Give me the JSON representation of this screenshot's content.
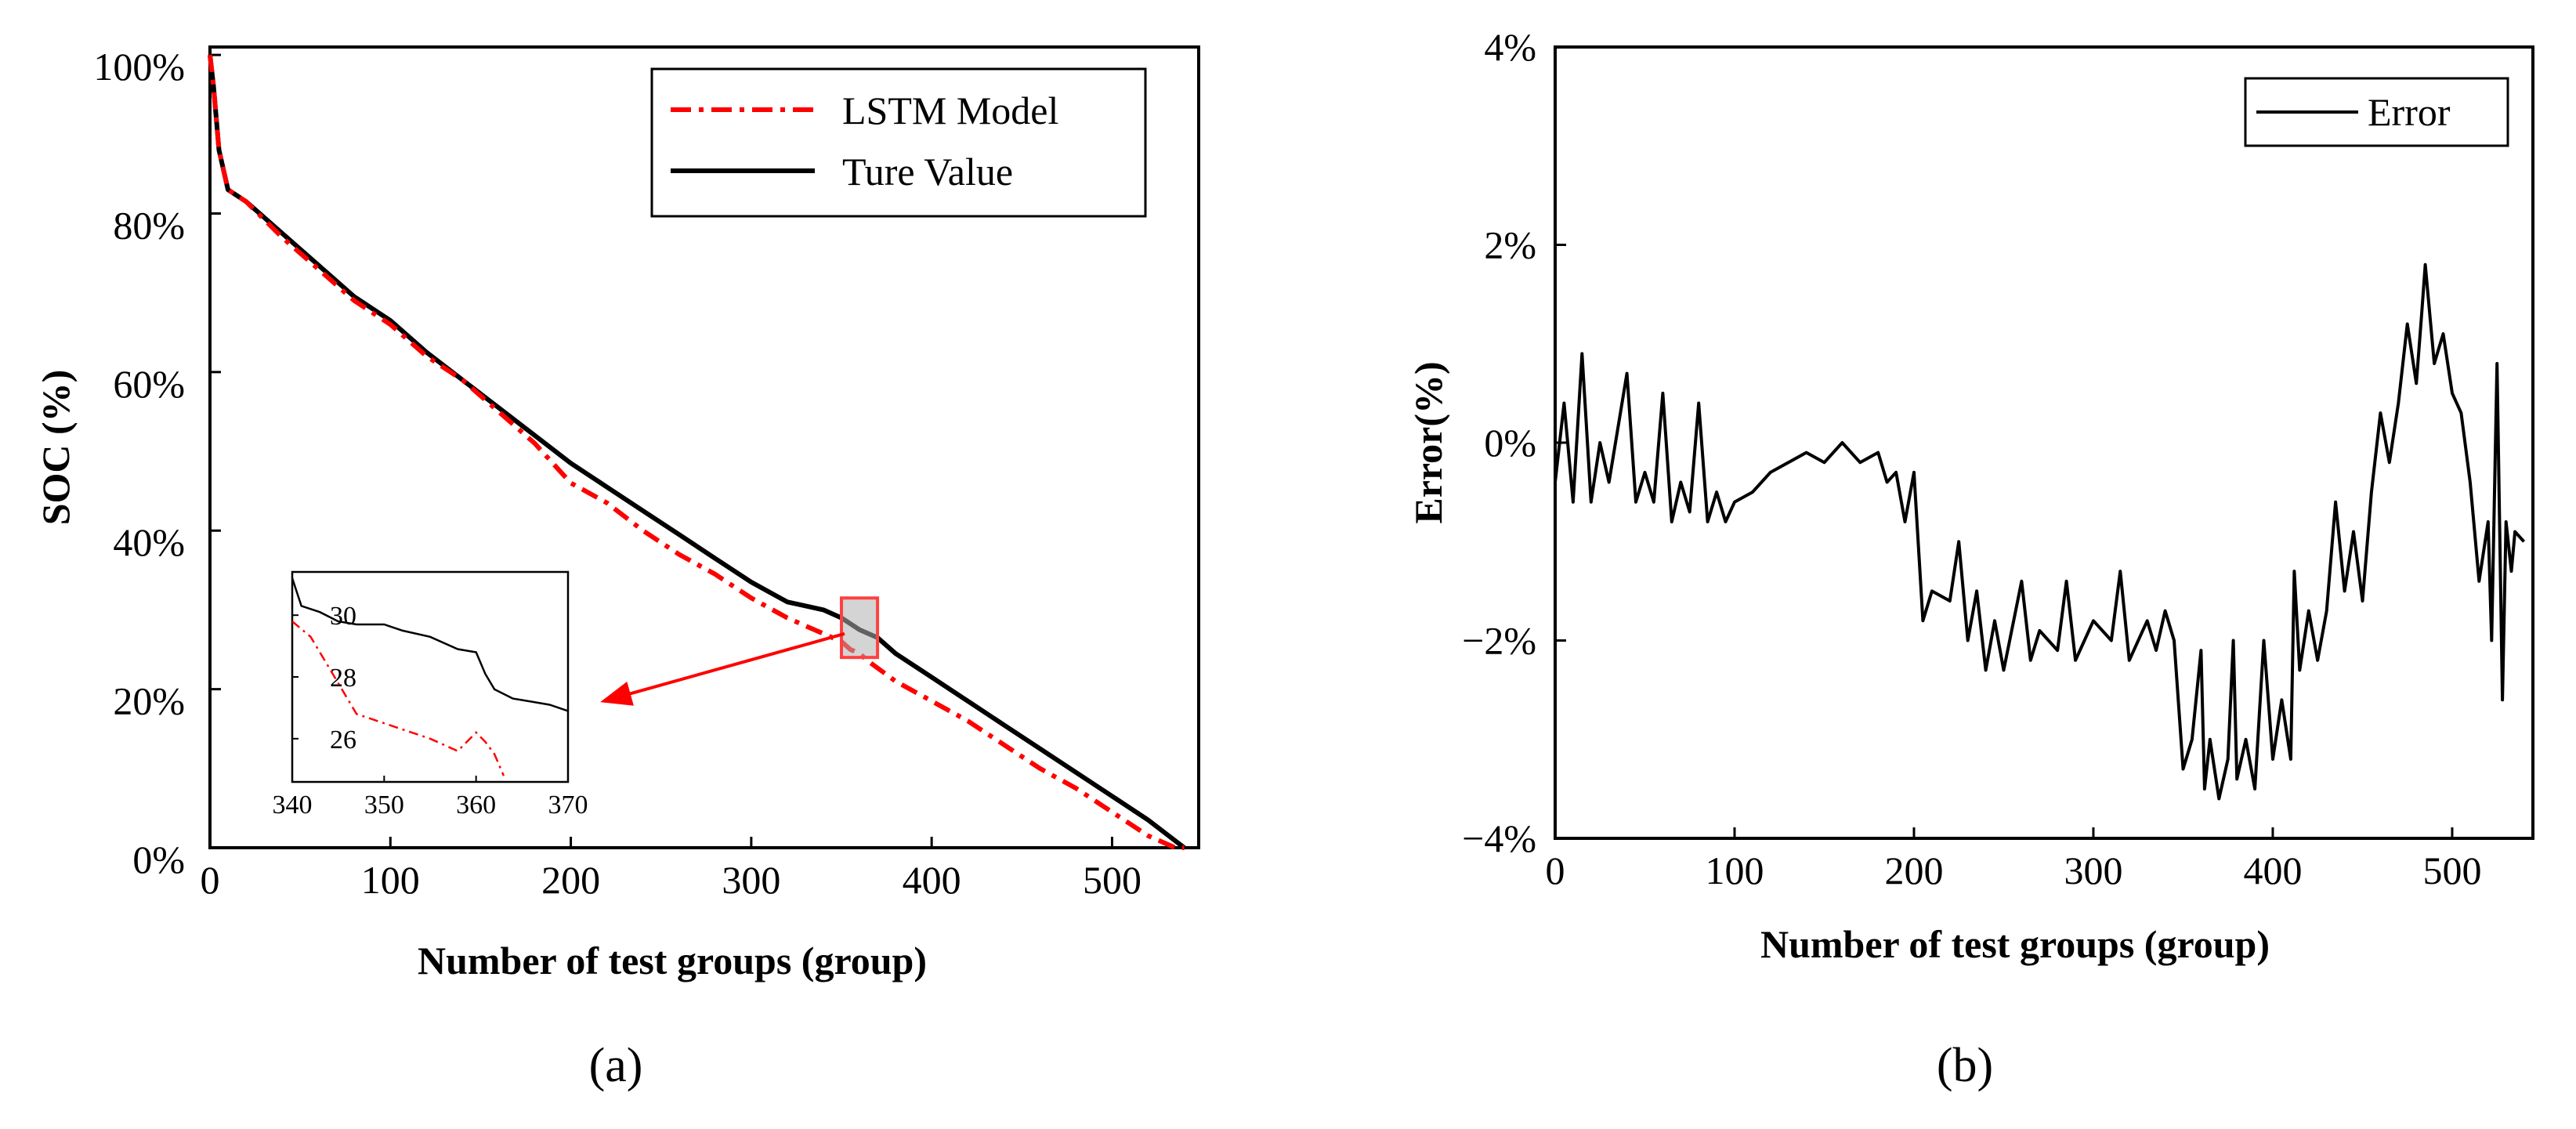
{
  "chart_data": [
    {
      "id": "a",
      "type": "line",
      "caption": "(a)",
      "xlabel": "Number of test groups (group)",
      "ylabel": "SOC (%)",
      "xlim": [
        0,
        548
      ],
      "ylim": [
        0,
        101
      ],
      "x_ticks": [
        0,
        100,
        200,
        300,
        400,
        500
      ],
      "y_ticks": [
        0,
        20,
        40,
        60,
        80,
        100
      ],
      "y_tick_labels": [
        "0%",
        "20%",
        "40%",
        "60%",
        "80%",
        "100%"
      ],
      "legend_position": "top-right",
      "series": [
        {
          "name": "LSTM Model",
          "color": "#ff0000",
          "style": "dash-dot",
          "x": [
            0,
            2,
            5,
            10,
            20,
            40,
            60,
            80,
            100,
            120,
            140,
            160,
            180,
            200,
            220,
            240,
            260,
            280,
            300,
            320,
            340,
            350,
            355,
            360,
            365,
            380,
            400,
            420,
            440,
            460,
            480,
            500,
            520,
            535,
            540
          ],
          "y": [
            100,
            96,
            88,
            83,
            81.5,
            77,
            73,
            69,
            66,
            62,
            59,
            55,
            51,
            46,
            43.5,
            40,
            37,
            34.5,
            31.5,
            29,
            27,
            26,
            25,
            24.5,
            23.5,
            21,
            18.5,
            16,
            13,
            10,
            7.5,
            4.5,
            1.5,
            0,
            0
          ]
        },
        {
          "name": "Ture Value",
          "color": "#000000",
          "style": "solid",
          "x": [
            0,
            2,
            5,
            10,
            20,
            40,
            60,
            80,
            100,
            120,
            140,
            160,
            180,
            200,
            220,
            240,
            260,
            280,
            300,
            320,
            340,
            350,
            360,
            370,
            380,
            400,
            420,
            440,
            460,
            480,
            500,
            520,
            540
          ],
          "y": [
            100,
            96,
            88,
            83,
            81.5,
            77.5,
            73.5,
            69.5,
            66.5,
            62.5,
            59,
            55.5,
            52,
            48.5,
            45.5,
            42.5,
            39.5,
            36.5,
            33.5,
            31,
            30,
            29,
            27.5,
            26.5,
            24.5,
            21.5,
            18.5,
            15.5,
            12.5,
            9.5,
            6.5,
            3.5,
            0
          ]
        }
      ],
      "inset": {
        "xlim": [
          340,
          370
        ],
        "ylim": [
          24.6,
          31.4
        ],
        "x_ticks": [
          340,
          350,
          360,
          370
        ],
        "y_ticks": [
          26,
          28,
          30
        ],
        "series": [
          {
            "name": "LSTM Model",
            "x": [
              340,
              342,
              345,
              347,
              350,
              355,
              358,
              360,
              361,
              362,
              363
            ],
            "y": [
              29.8,
              29.3,
              27.8,
              26.8,
              26.5,
              26.0,
              25.6,
              26.2,
              25.9,
              25.5,
              24.8
            ]
          },
          {
            "name": "Ture Value",
            "x": [
              340,
              341,
              343,
              345,
              347,
              350,
              352,
              355,
              358,
              360,
              361,
              362,
              364,
              366,
              368,
              370
            ],
            "y": [
              31.2,
              30.3,
              30.1,
              29.8,
              29.7,
              29.7,
              29.5,
              29.3,
              28.9,
              28.8,
              28.1,
              27.6,
              27.3,
              27.2,
              27.1,
              26.9
            ]
          }
        ]
      }
    },
    {
      "id": "b",
      "type": "line",
      "caption": "(b)",
      "xlabel": "Number of test groups (group)",
      "ylabel": "Error(%)",
      "xlim": [
        0,
        545
      ],
      "ylim": [
        -4,
        4
      ],
      "x_ticks": [
        0,
        100,
        200,
        300,
        400,
        500
      ],
      "y_ticks": [
        -4,
        -2,
        0,
        2,
        4
      ],
      "y_tick_labels": [
        "−4%",
        "−2%",
        "0%",
        "2%",
        "4%"
      ],
      "legend_position": "top-right",
      "series": [
        {
          "name": "Error",
          "color": "#000000",
          "style": "solid",
          "x": [
            0,
            5,
            10,
            15,
            20,
            25,
            30,
            40,
            45,
            50,
            55,
            60,
            65,
            70,
            75,
            80,
            85,
            90,
            95,
            100,
            110,
            120,
            130,
            140,
            150,
            160,
            170,
            180,
            185,
            190,
            195,
            200,
            205,
            210,
            220,
            225,
            230,
            235,
            240,
            245,
            250,
            260,
            265,
            270,
            280,
            285,
            290,
            300,
            310,
            315,
            320,
            330,
            335,
            340,
            345,
            350,
            355,
            360,
            362,
            365,
            370,
            375,
            378,
            380,
            385,
            390,
            395,
            400,
            405,
            410,
            412,
            415,
            420,
            425,
            430,
            435,
            440,
            445,
            450,
            455,
            460,
            465,
            470,
            475,
            480,
            483,
            485,
            490,
            495,
            500,
            505,
            510,
            515,
            520,
            522,
            525,
            528,
            530,
            533,
            535,
            540
          ],
          "y": [
            -0.4,
            0.4,
            -0.6,
            0.9,
            -0.6,
            0.0,
            -0.4,
            0.7,
            -0.6,
            -0.3,
            -0.6,
            0.5,
            -0.8,
            -0.4,
            -0.7,
            0.4,
            -0.8,
            -0.5,
            -0.8,
            -0.6,
            -0.5,
            -0.3,
            -0.2,
            -0.1,
            -0.2,
            0.0,
            -0.2,
            -0.1,
            -0.4,
            -0.3,
            -0.8,
            -0.3,
            -1.8,
            -1.5,
            -1.6,
            -1.0,
            -2.0,
            -1.5,
            -2.3,
            -1.8,
            -2.3,
            -1.4,
            -2.2,
            -1.9,
            -2.1,
            -1.4,
            -2.2,
            -1.8,
            -2.0,
            -1.3,
            -2.2,
            -1.8,
            -2.1,
            -1.7,
            -2.0,
            -3.3,
            -3.0,
            -2.1,
            -3.5,
            -3.0,
            -3.6,
            -3.2,
            -2.0,
            -3.4,
            -3.0,
            -3.5,
            -2.0,
            -3.2,
            -2.6,
            -3.2,
            -1.3,
            -2.3,
            -1.7,
            -2.2,
            -1.7,
            -0.6,
            -1.5,
            -0.9,
            -1.6,
            -0.5,
            0.3,
            -0.2,
            0.4,
            1.2,
            0.6,
            1.3,
            1.8,
            0.8,
            1.1,
            0.5,
            0.3,
            -0.4,
            -1.4,
            -0.8,
            -2.0,
            0.8,
            -2.6,
            -0.8,
            -1.3,
            -0.9,
            -1.0
          ]
        }
      ]
    }
  ]
}
